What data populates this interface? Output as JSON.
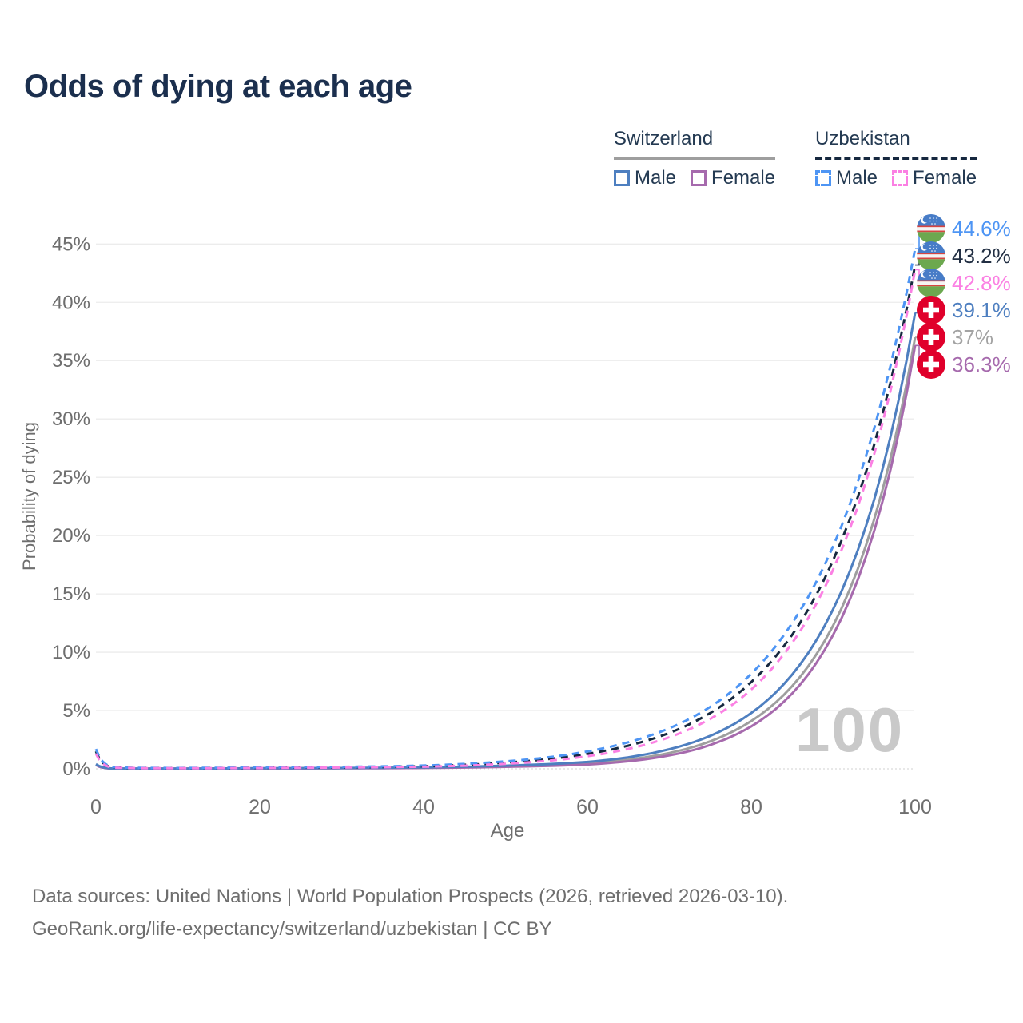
{
  "title": "Odds of dying at each age",
  "legend": {
    "groups": [
      {
        "title": "Switzerland",
        "line_style": "solid",
        "line_color": "#9e9e9e",
        "items": [
          {
            "label": "Male",
            "color": "#4e7fc0",
            "dashed": false
          },
          {
            "label": "Female",
            "color": "#a66aad",
            "dashed": false
          }
        ]
      },
      {
        "title": "Uzbekistan",
        "line_style": "dashed",
        "line_color": "#16283f",
        "items": [
          {
            "label": "Male",
            "color": "#4e95f4",
            "dashed": true
          },
          {
            "label": "Female",
            "color": "#fb80e3",
            "dashed": true
          }
        ]
      }
    ]
  },
  "chart_data": {
    "type": "line",
    "title": "Odds of dying at each age",
    "xlabel": "Age",
    "ylabel": "Probability of dying",
    "xlim": [
      0,
      100
    ],
    "ylim": [
      0,
      47
    ],
    "grid": "horizontal",
    "watermark": "100",
    "xticks": [
      {
        "label": "0",
        "value": 0
      },
      {
        "label": "20",
        "value": 20
      },
      {
        "label": "40",
        "value": 40
      },
      {
        "label": "60",
        "value": 60
      },
      {
        "label": "80",
        "value": 80
      },
      {
        "label": "100",
        "value": 100
      }
    ],
    "yticks": [
      {
        "label": "0%",
        "value": 0
      },
      {
        "label": "5%",
        "value": 5
      },
      {
        "label": "10%",
        "value": 10
      },
      {
        "label": "15%",
        "value": 15
      },
      {
        "label": "20%",
        "value": 20
      },
      {
        "label": "25%",
        "value": 25
      },
      {
        "label": "30%",
        "value": 30
      },
      {
        "label": "35%",
        "value": 35
      },
      {
        "label": "40%",
        "value": 40
      },
      {
        "label": "45%",
        "value": 45
      }
    ],
    "ages": [
      0,
      2,
      5,
      10,
      15,
      20,
      25,
      30,
      35,
      40,
      45,
      50,
      55,
      60,
      65,
      70,
      75,
      80,
      85,
      90,
      95,
      100
    ],
    "series": [
      {
        "name": "Switzerland",
        "color": "#9e9e9e",
        "dashed": false,
        "values": [
          0.37,
          0.025,
          0.018,
          0.015,
          0.025,
          0.04,
          0.05,
          0.06,
          0.07,
          0.09,
          0.14,
          0.21,
          0.31,
          0.45,
          0.79,
          1.36,
          2.36,
          4.1,
          7.1,
          12.3,
          21.4,
          37.0
        ]
      },
      {
        "name": "Switzerland Female",
        "color": "#a66aad",
        "dashed": false,
        "values": [
          0.33,
          0.02,
          0.015,
          0.013,
          0.02,
          0.03,
          0.035,
          0.045,
          0.055,
          0.075,
          0.11,
          0.17,
          0.25,
          0.37,
          0.65,
          1.15,
          2.05,
          3.64,
          6.47,
          11.5,
          20.4,
          36.3
        ]
      },
      {
        "name": "Switzerland Male",
        "color": "#4e7fc0",
        "dashed": false,
        "values": [
          0.4,
          0.03,
          0.02,
          0.02,
          0.03,
          0.05,
          0.06,
          0.07,
          0.09,
          0.12,
          0.18,
          0.27,
          0.4,
          0.59,
          0.99,
          1.68,
          2.83,
          4.79,
          8.09,
          13.7,
          23.1,
          39.1
        ]
      },
      {
        "name": "Uzbekistan",
        "color": "#16283f",
        "dashed": true,
        "values": [
          1.5,
          0.12,
          0.07,
          0.06,
          0.07,
          0.09,
          0.11,
          0.13,
          0.16,
          0.22,
          0.34,
          0.53,
          0.82,
          1.28,
          1.99,
          3.08,
          4.79,
          7.44,
          11.5,
          17.9,
          27.8,
          43.2
        ]
      },
      {
        "name": "Uzbekistan Male",
        "color": "#4e95f4",
        "dashed": true,
        "values": [
          1.7,
          0.15,
          0.08,
          0.07,
          0.09,
          0.12,
          0.14,
          0.17,
          0.21,
          0.28,
          0.42,
          0.64,
          0.97,
          1.49,
          2.28,
          3.48,
          5.32,
          8.15,
          12.5,
          19.1,
          29.2,
          44.6
        ]
      },
      {
        "name": "Uzbekistan Female",
        "color": "#fb80e3",
        "dashed": true,
        "values": [
          1.3,
          0.1,
          0.06,
          0.05,
          0.06,
          0.07,
          0.09,
          0.11,
          0.14,
          0.18,
          0.27,
          0.43,
          0.68,
          1.08,
          1.71,
          2.71,
          4.29,
          6.8,
          10.8,
          17.1,
          27.0,
          42.8
        ]
      }
    ],
    "end_labels": [
      {
        "text": "44.6%",
        "value": 44.6,
        "flag": "uzbekistan",
        "color": "#4e95f4"
      },
      {
        "text": "43.2%",
        "value": 43.2,
        "flag": "uzbekistan",
        "color": "#222f43"
      },
      {
        "text": "42.8%",
        "value": 42.8,
        "flag": "uzbekistan",
        "color": "#fb80e3"
      },
      {
        "text": "39.1%",
        "value": 39.1,
        "flag": "switzerland",
        "color": "#4e7fc0"
      },
      {
        "text": "37%",
        "value": 37.0,
        "flag": "switzerland",
        "color": "#a3a3a3"
      },
      {
        "text": "36.3%",
        "value": 36.3,
        "flag": "switzerland",
        "color": "#a66aad"
      }
    ]
  },
  "footer": {
    "line1": "Data sources: United Nations | World Population Prospects (2026, retrieved 2026-03-10).",
    "line2": "GeoRank.org/life-expectancy/switzerland/uzbekistan | CC BY"
  }
}
